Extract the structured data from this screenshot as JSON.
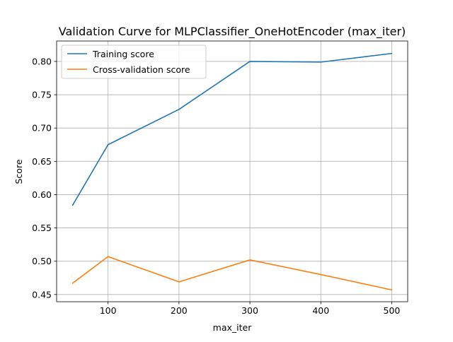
{
  "chart_data": {
    "type": "line",
    "title": "Validation Curve for MLPClassifier_OneHotEncoder (max_iter)",
    "xlabel": "max_iter",
    "ylabel": "Score",
    "x": [
      50,
      100,
      200,
      300,
      400,
      500
    ],
    "x_ticks": [
      "100",
      "200",
      "300",
      "400",
      "500"
    ],
    "x_tick_values": [
      100,
      200,
      300,
      400,
      500
    ],
    "y_ticks": [
      "0.45",
      "0.50",
      "0.55",
      "0.60",
      "0.65",
      "0.70",
      "0.75",
      "0.80"
    ],
    "y_tick_values": [
      0.45,
      0.5,
      0.55,
      0.6,
      0.65,
      0.7,
      0.75,
      0.8
    ],
    "xlim": [
      27.5,
      522.5
    ],
    "ylim": [
      0.4392,
      0.8307
    ],
    "grid": true,
    "legend_position": "upper-left",
    "series": [
      {
        "name": "Training score",
        "color": "#1f77b4",
        "values": [
          0.584,
          0.675,
          0.728,
          0.8,
          0.799,
          0.812
        ]
      },
      {
        "name": "Cross-validation score",
        "color": "#ff7f0e",
        "values": [
          0.467,
          0.507,
          0.469,
          0.502,
          0.48,
          0.457
        ]
      }
    ]
  }
}
